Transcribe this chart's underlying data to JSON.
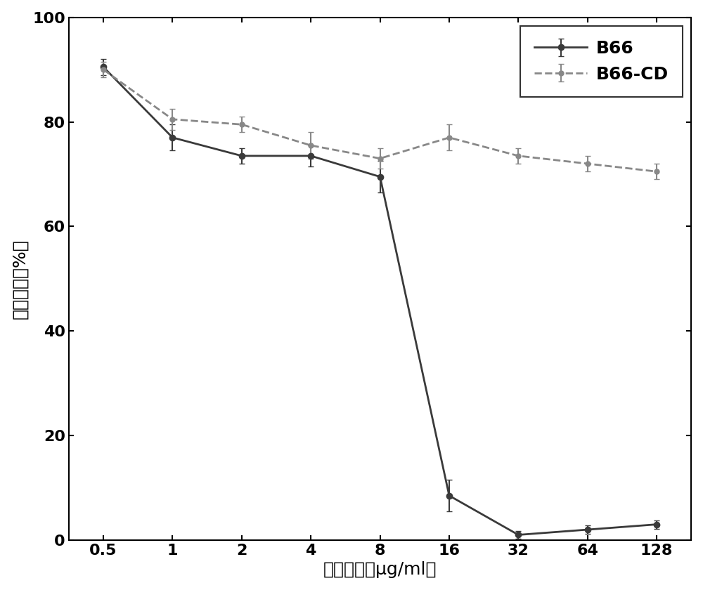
{
  "x_values": [
    0.5,
    1,
    2,
    4,
    8,
    16,
    32,
    64,
    128
  ],
  "x_labels": [
    "0.5",
    "1",
    "2",
    "4",
    "8",
    "16",
    "32",
    "64",
    "128"
  ],
  "B66_y": [
    90.5,
    77.0,
    73.5,
    73.5,
    69.5,
    8.5,
    1.0,
    2.0,
    3.0
  ],
  "B66_yerr": [
    1.5,
    2.5,
    1.5,
    2.0,
    3.0,
    3.0,
    0.8,
    0.8,
    0.8
  ],
  "B66CD_y": [
    90.0,
    80.5,
    79.5,
    75.5,
    73.0,
    77.0,
    73.5,
    72.0,
    70.5
  ],
  "B66CD_yerr": [
    1.5,
    2.0,
    1.5,
    2.5,
    2.0,
    2.5,
    1.5,
    1.5,
    1.5
  ],
  "color_B66": "#3a3a3a",
  "color_B66CD": "#888888",
  "xlabel": "材料浓度（μg/ml）",
  "ylabel": "细胞活性（%）",
  "ylim": [
    0,
    100
  ],
  "yticks": [
    0,
    20,
    40,
    60,
    80,
    100
  ],
  "legend_B66": "B66",
  "legend_B66CD": "B66-CD",
  "marker_B66": "o",
  "marker_B66CD": "o",
  "linewidth": 2.0,
  "markersize_B66": 6,
  "markersize_B66CD": 5,
  "capsize": 3,
  "elinewidth": 1.5,
  "label_fontsize": 18,
  "tick_fontsize": 16,
  "legend_fontsize": 18
}
